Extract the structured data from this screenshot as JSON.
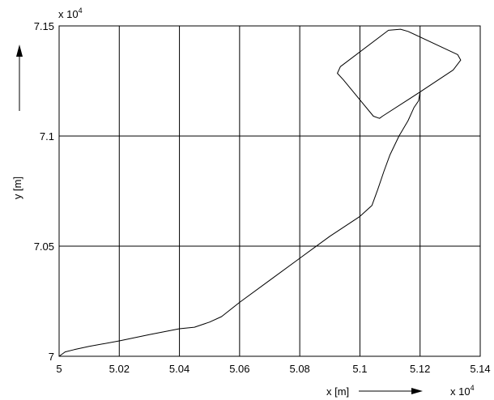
{
  "chart_data": {
    "type": "line",
    "xlabel": "x [m]",
    "ylabel": "y [m]",
    "x_multiplier": "x 10",
    "x_exponent": "4",
    "y_multiplier": "x 10",
    "y_exponent": "4",
    "xlim": [
      5.0,
      5.14
    ],
    "ylim": [
      7.0,
      7.15
    ],
    "x_ticks": [
      "5",
      "5.02",
      "5.04",
      "5.06",
      "5.08",
      "5.1",
      "5.12",
      "5.14"
    ],
    "y_ticks": [
      "7",
      "7.05",
      "7.1",
      "7.15"
    ],
    "grid": true,
    "x_arrow": true,
    "y_arrow": true,
    "series": [
      {
        "color": "#000000",
        "x": [
          5.0,
          5.002,
          5.005,
          5.01,
          5.02,
          5.03,
          5.04,
          5.045,
          5.05,
          5.054,
          5.06,
          5.07,
          5.08,
          5.09,
          5.1,
          5.104,
          5.106,
          5.108,
          5.11,
          5.113,
          5.116,
          5.118,
          5.1195,
          5.12
        ],
        "y": [
          7.0,
          7.002,
          7.003,
          7.0045,
          7.007,
          7.0098,
          7.0125,
          7.0132,
          7.0155,
          7.018,
          7.0245,
          7.0345,
          7.0445,
          7.0545,
          7.0635,
          7.0685,
          7.076,
          7.084,
          7.0915,
          7.1,
          7.107,
          7.113,
          7.116,
          7.12
        ]
      },
      {
        "color": "#000000",
        "x": [
          5.12,
          5.131,
          5.1335,
          5.1325,
          5.116,
          5.1135,
          5.1095,
          5.0935,
          5.0925,
          5.0945,
          5.1045,
          5.1065,
          5.1075,
          5.12
        ],
        "y": [
          7.12,
          7.13,
          7.1345,
          7.137,
          7.1475,
          7.1485,
          7.148,
          7.1315,
          7.1285,
          7.1255,
          7.109,
          7.108,
          7.109,
          7.12
        ]
      }
    ]
  }
}
